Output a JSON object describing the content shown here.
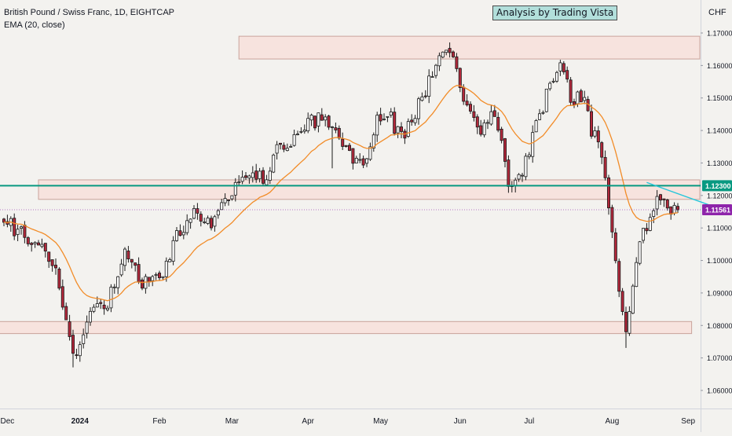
{
  "header": {
    "symbol_title": "British Pound / Swiss Franc, 1D, EIGHTCAP",
    "indicator": "EMA (20, close)",
    "banner": "Analysis by Trading Vista",
    "currency": "CHF"
  },
  "colors": {
    "background": "#f3f2ef",
    "up_candle": "#ffffff",
    "down_candle": "#b2283b",
    "ema": "#f28c28",
    "zone_fill": "#f7dfd9",
    "zone_border": "#c9a39b",
    "resistance_line": "#089981",
    "trendline": "#26c6da",
    "current_price": "#8e24aa"
  },
  "chart_data": {
    "type": "candlestick",
    "title": "British Pound / Swiss Franc, 1D, EIGHTCAP",
    "indicator": "EMA (20, close)",
    "ylim": [
      1.055,
      1.173
    ],
    "y_ticks": [
      "1.17000",
      "1.16000",
      "1.15000",
      "1.14000",
      "1.13000",
      "1.12000",
      "1.11000",
      "1.10000",
      "1.09000",
      "1.08000",
      "1.07000",
      "1.06000"
    ],
    "x_ticks": [
      {
        "label": "Dec",
        "index": 1
      },
      {
        "label": "2024",
        "index": 22
      },
      {
        "label": "Feb",
        "index": 45
      },
      {
        "label": "Mar",
        "index": 66
      },
      {
        "label": "Apr",
        "index": 88
      },
      {
        "label": "May",
        "index": 109
      },
      {
        "label": "Jun",
        "index": 132
      },
      {
        "label": "Jul",
        "index": 152
      },
      {
        "label": "Aug",
        "index": 176
      },
      {
        "label": "Sep",
        "index": 198
      }
    ],
    "bars": 196,
    "anchors": [
      [
        0,
        1.1145
      ],
      [
        4,
        1.108
      ],
      [
        8,
        1.107
      ],
      [
        12,
        1.103
      ],
      [
        16,
        1.094
      ],
      [
        20,
        1.07
      ],
      [
        25,
        1.083
      ],
      [
        30,
        1.087
      ],
      [
        35,
        1.101
      ],
      [
        40,
        1.093
      ],
      [
        46,
        1.094
      ],
      [
        50,
        1.107
      ],
      [
        55,
        1.116
      ],
      [
        60,
        1.112
      ],
      [
        64,
        1.117
      ],
      [
        68,
        1.124
      ],
      [
        72,
        1.127
      ],
      [
        76,
        1.125
      ],
      [
        80,
        1.136
      ],
      [
        84,
        1.137
      ],
      [
        88,
        1.141
      ],
      [
        92,
        1.145
      ],
      [
        96,
        1.139
      ],
      [
        100,
        1.132
      ],
      [
        104,
        1.13
      ],
      [
        108,
        1.143
      ],
      [
        112,
        1.143
      ],
      [
        116,
        1.138
      ],
      [
        120,
        1.148
      ],
      [
        124,
        1.158
      ],
      [
        127,
        1.166
      ],
      [
        130,
        1.16
      ],
      [
        134,
        1.148
      ],
      [
        138,
        1.14
      ],
      [
        142,
        1.147
      ],
      [
        144,
        1.135
      ],
      [
        146,
        1.124
      ],
      [
        150,
        1.128
      ],
      [
        154,
        1.141
      ],
      [
        158,
        1.154
      ],
      [
        161,
        1.162
      ],
      [
        164,
        1.15
      ],
      [
        168,
        1.15
      ],
      [
        170,
        1.14
      ],
      [
        173,
        1.132
      ],
      [
        176,
        1.11
      ],
      [
        178,
        1.093
      ],
      [
        180,
        1.08
      ],
      [
        183,
        1.1
      ],
      [
        187,
        1.115
      ],
      [
        190,
        1.12
      ],
      [
        193,
        1.115
      ],
      [
        195,
        1.1156
      ]
    ],
    "ema_period": 20,
    "zones": [
      {
        "from": 1.162,
        "to": 1.169,
        "start_index": 68,
        "end_index": 210
      },
      {
        "from": 1.1188,
        "to": 1.1248,
        "start_index": 10,
        "end_index": 210
      },
      {
        "from": 1.0775,
        "to": 1.0812,
        "start_index": -2,
        "end_index": 199
      }
    ],
    "resistance_level": 1.123,
    "trendline": {
      "start": {
        "index": 186,
        "price": 1.124
      },
      "end": {
        "index": 210,
        "price": 1.1148
      }
    },
    "current_price": 1.1156,
    "price_labels": [
      "1.12300",
      "1.11561"
    ]
  }
}
